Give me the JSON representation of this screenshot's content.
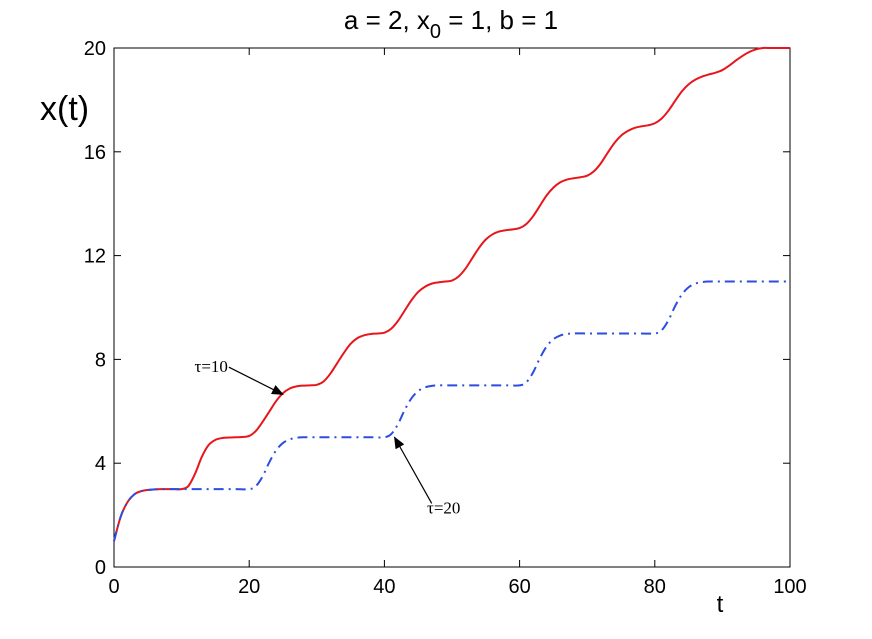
{
  "chart_data": {
    "type": "line",
    "title_parts": {
      "before": "a = 2, x",
      "sub": "0",
      "after": " = 1, b = 1"
    },
    "xlabel": "t",
    "ylabel": "x(t)",
    "xlim": [
      0,
      100
    ],
    "ylim": [
      0,
      20
    ],
    "xticks": [
      0,
      20,
      40,
      60,
      80,
      100
    ],
    "yticks": [
      0,
      4,
      8,
      12,
      16,
      20
    ],
    "grid": false,
    "colors": {
      "series1": "#e8161b",
      "series2": "#2b4ee0"
    },
    "series": [
      {
        "style": "solid",
        "color": "#e8161b",
        "x": [
          0,
          1,
          2,
          3,
          4,
          5,
          6,
          7,
          8,
          9,
          10,
          11,
          12,
          13,
          14,
          15,
          16,
          17,
          18,
          19,
          20,
          21,
          22,
          23,
          24,
          25,
          26,
          27,
          28,
          29,
          30,
          31,
          32,
          33,
          34,
          35,
          36,
          37,
          38,
          39,
          40,
          41,
          42,
          43,
          44,
          45,
          46,
          47,
          48,
          49,
          50,
          51,
          52,
          53,
          54,
          55,
          56,
          57,
          58,
          59,
          60,
          61,
          62,
          63,
          64,
          65,
          66,
          67,
          68,
          69,
          70,
          71,
          72,
          73,
          74,
          75,
          76,
          77,
          78,
          79,
          80,
          81,
          82,
          83,
          84,
          85,
          86,
          87,
          88,
          89,
          90,
          91,
          92,
          93,
          94,
          95,
          96,
          97,
          98,
          99,
          100
        ],
        "y": [
          1.0,
          1.95,
          2.5,
          2.8,
          2.92,
          2.97,
          2.99,
          3.0,
          3.0,
          3.0,
          3.0,
          3.12,
          3.6,
          4.25,
          4.7,
          4.9,
          4.97,
          4.99,
          5.0,
          5.01,
          5.05,
          5.25,
          5.6,
          6.0,
          6.4,
          6.7,
          6.88,
          6.96,
          6.99,
          7.0,
          7.02,
          7.15,
          7.45,
          7.85,
          8.25,
          8.6,
          8.82,
          8.93,
          8.98,
          9.0,
          9.03,
          9.18,
          9.48,
          9.88,
          10.28,
          10.6,
          10.8,
          10.92,
          10.97,
          11.0,
          11.04,
          11.2,
          11.5,
          11.9,
          12.3,
          12.62,
          12.82,
          12.93,
          12.98,
          13.01,
          13.06,
          13.22,
          13.52,
          13.92,
          14.32,
          14.62,
          14.82,
          14.93,
          14.98,
          15.02,
          15.08,
          15.25,
          15.55,
          15.95,
          16.33,
          16.62,
          16.8,
          16.92,
          16.98,
          17.02,
          17.1,
          17.28,
          17.58,
          17.96,
          18.33,
          18.6,
          18.78,
          18.9,
          18.98,
          19.05,
          19.15,
          19.32,
          19.52,
          19.7,
          19.85,
          19.95,
          20.0,
          20.0,
          20.0,
          20.0,
          20.0
        ]
      },
      {
        "style": "dash-dot",
        "color": "#2b4ee0",
        "x": [
          0,
          1,
          2,
          3,
          4,
          5,
          6,
          7,
          8,
          10,
          12,
          14,
          16,
          18,
          20,
          21,
          22,
          23,
          24,
          25,
          26,
          27,
          28,
          30,
          32,
          34,
          36,
          38,
          40,
          41,
          42,
          43,
          44,
          45,
          46,
          47,
          48,
          50,
          52,
          54,
          56,
          58,
          60,
          61,
          62,
          63,
          64,
          65,
          66,
          67,
          68,
          70,
          72,
          74,
          76,
          78,
          80,
          81,
          82,
          83,
          84,
          85,
          86,
          87,
          88,
          90,
          92,
          94,
          96,
          98,
          100
        ],
        "y": [
          1.0,
          1.95,
          2.5,
          2.8,
          2.92,
          2.97,
          2.99,
          3.0,
          3.0,
          3.0,
          3.0,
          3.0,
          3.0,
          3.0,
          3.0,
          3.12,
          3.5,
          4.05,
          4.5,
          4.78,
          4.92,
          4.98,
          5.0,
          5.0,
          5.0,
          5.0,
          5.0,
          5.0,
          5.0,
          5.12,
          5.5,
          6.05,
          6.5,
          6.78,
          6.92,
          6.98,
          7.0,
          7.0,
          7.0,
          7.0,
          7.0,
          7.0,
          7.0,
          7.12,
          7.5,
          8.05,
          8.5,
          8.78,
          8.92,
          8.98,
          9.0,
          9.0,
          9.0,
          9.0,
          9.0,
          9.0,
          9.0,
          9.12,
          9.5,
          10.05,
          10.5,
          10.78,
          10.92,
          10.98,
          11.0,
          11.0,
          11.0,
          11.0,
          11.0,
          11.0,
          11.0
        ]
      }
    ],
    "annotations": [
      {
        "text": "τ=10",
        "at": [
          25,
          6.65
        ],
        "from": [
          17,
          7.7
        ]
      },
      {
        "text": "τ=20",
        "at": [
          41.5,
          5.0
        ],
        "from": [
          47,
          2.45
        ]
      }
    ]
  }
}
